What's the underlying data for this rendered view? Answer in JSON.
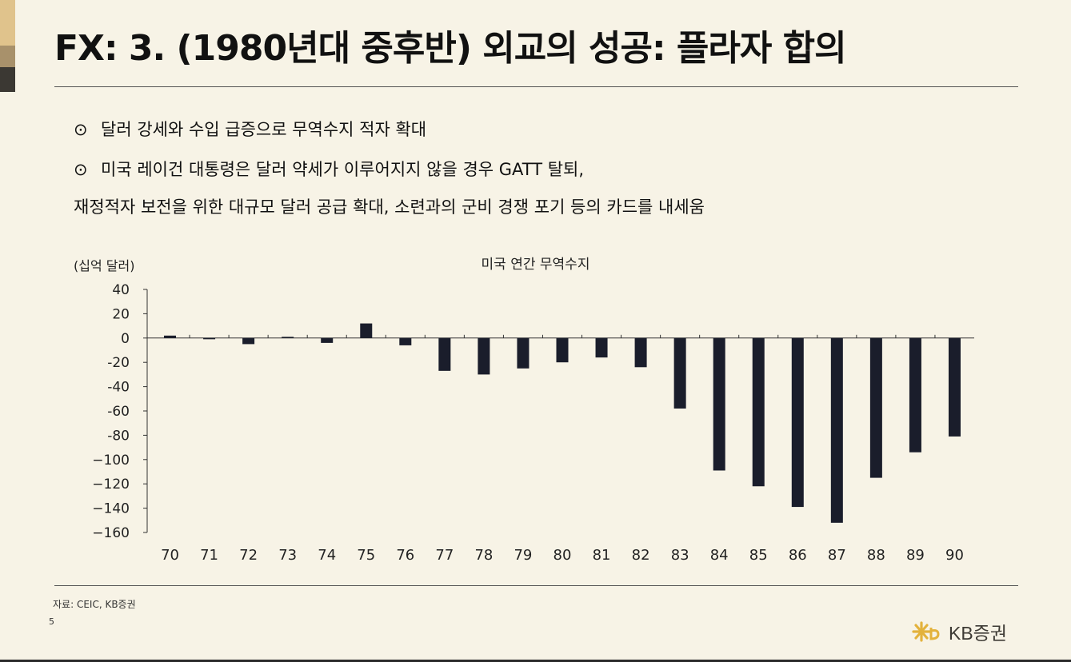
{
  "title": "FX: 3. (1980년대 중후반) 외교의 성공: 플라자 합의",
  "bullets": {
    "line1": "달러 강세와 수입 급증으로 무역수지 적자 확대",
    "line2": "미국 레이건 대통령은 달러 약세가 이루어지지 않을 경우 GATT 탈퇴,",
    "line3": "재정적자 보전을 위한 대규모 달러 공급 확대, 소련과의 군비 경쟁 포기 등의 카드를 내세움",
    "marker": "⊙"
  },
  "colors": {
    "background": "#f7f3e6",
    "bar": "#1a1d2b",
    "accent_1": "#e0c38c",
    "accent_2": "#a8916b",
    "accent_3": "#3b3833"
  },
  "chart_data": {
    "type": "bar",
    "title": "미국 연간 무역수지",
    "unit_label": "(십억 달러)",
    "xlabel": "",
    "ylabel": "",
    "categories": [
      "70",
      "71",
      "72",
      "73",
      "74",
      "75",
      "76",
      "77",
      "78",
      "79",
      "80",
      "81",
      "82",
      "83",
      "84",
      "85",
      "86",
      "87",
      "88",
      "89",
      "90"
    ],
    "values": [
      2,
      -1,
      -5,
      1,
      -4,
      12,
      -6,
      -27,
      -30,
      -25,
      -20,
      -16,
      -24,
      -58,
      -109,
      -122,
      -139,
      -152,
      -115,
      -94,
      -81
    ],
    "ylim": [
      -160,
      40
    ],
    "yticks": [
      40,
      20,
      0,
      -20,
      -40,
      -60,
      -80,
      -100,
      -120,
      -140,
      -160
    ],
    "ytick_labels": [
      "40",
      "20",
      "0",
      "-20",
      "-40",
      "-60",
      "-80",
      "−100",
      "−120",
      "−140",
      "−160"
    ],
    "grid": false,
    "legend": "none"
  },
  "source": "자료: CEIC, KB증권",
  "page_number": "5",
  "logo_text": "KB증권"
}
